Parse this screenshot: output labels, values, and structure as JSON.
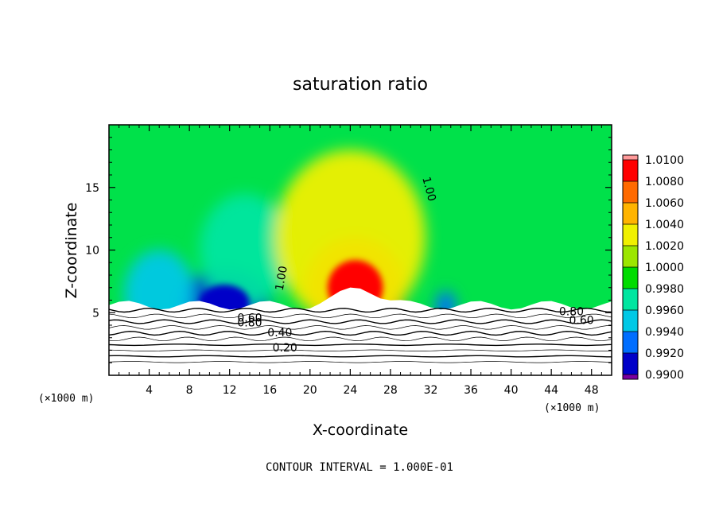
{
  "chart_data": {
    "type": "heatmap",
    "title": "saturation ratio",
    "xlabel": "X-coordinate",
    "ylabel": "Z-coordinate",
    "x_unit": "(×1000 m)",
    "y_unit": "(×1000 m)",
    "xlim": [
      0,
      50
    ],
    "ylim": [
      0,
      20
    ],
    "x_ticks": [
      4,
      8,
      12,
      16,
      20,
      24,
      28,
      32,
      36,
      40,
      44,
      48
    ],
    "y_ticks": [
      5,
      10,
      15
    ],
    "colorbar": {
      "levels": [
        "1.0100",
        "1.0080",
        "1.0060",
        "1.0040",
        "1.0020",
        "1.0000",
        "0.9980",
        "0.9960",
        "0.9940",
        "0.9920",
        "0.9900"
      ],
      "colors": [
        "#ff0000",
        "#ff6a00",
        "#ffb400",
        "#f0f000",
        "#9ce600",
        "#00dc00",
        "#00e6a0",
        "#00c8e6",
        "#006eff",
        "#0000c8"
      ],
      "top_color": "#ff9a9a",
      "bottom_color": "#7a00a0",
      "range": [
        0.99,
        1.01
      ]
    },
    "fill_features": [
      {
        "kind": "low",
        "x": 11.5,
        "y": 5.8,
        "rx": 4.5,
        "ry": 2.6,
        "value": 0.991
      },
      {
        "kind": "low",
        "x": 5.0,
        "y": 6.5,
        "rx": 3.5,
        "ry": 3.5,
        "value": 0.995
      },
      {
        "kind": "low",
        "x": 13.5,
        "y": 10.0,
        "rx": 4.5,
        "ry": 4.5,
        "value": 0.998
      },
      {
        "kind": "high",
        "x": 24.5,
        "y": 7.0,
        "rx": 5.0,
        "ry": 4.0,
        "value": 1.008
      },
      {
        "kind": "high",
        "x": 24.0,
        "y": 11.0,
        "rx": 7.5,
        "ry": 7.0,
        "value": 1.003
      },
      {
        "kind": "low",
        "x": 33.5,
        "y": 5.5,
        "rx": 1.0,
        "ry": 1.2,
        "value": 0.994
      }
    ],
    "contour_labels": [
      {
        "text": "1.00",
        "x": 17.5,
        "y": 7.7
      },
      {
        "text": "1.00",
        "x": 31.5,
        "y": 14.8
      },
      {
        "text": "0.80",
        "x": 14.0,
        "y": 3.9
      },
      {
        "text": "0.60",
        "x": 14.0,
        "y": 4.3
      },
      {
        "text": "0.40",
        "x": 17.0,
        "y": 3.1
      },
      {
        "text": "0.20",
        "x": 17.5,
        "y": 1.9
      },
      {
        "text": "0.80",
        "x": 46.0,
        "y": 4.8
      },
      {
        "text": "0.60",
        "x": 47.0,
        "y": 4.1
      }
    ],
    "contour_levels": [
      0.1,
      0.2,
      0.3,
      0.4,
      0.5,
      0.6,
      0.7,
      0.8,
      0.9,
      1.0
    ],
    "contour_interval_text": "CONTOUR INTERVAL = 1.000E-01"
  }
}
